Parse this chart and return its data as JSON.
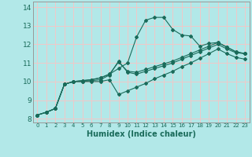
{
  "xlabel": "Humidex (Indice chaleur)",
  "ylabel": "",
  "bg_color": "#b2e8e8",
  "grid_color": "#f0c8c8",
  "line_color": "#1a6b5a",
  "xlim": [
    -0.5,
    23.5
  ],
  "ylim": [
    7.8,
    14.3
  ],
  "xticks": [
    0,
    1,
    2,
    3,
    4,
    5,
    6,
    7,
    8,
    9,
    10,
    11,
    12,
    13,
    14,
    15,
    16,
    17,
    18,
    19,
    20,
    21,
    22,
    23
  ],
  "yticks": [
    8,
    9,
    10,
    11,
    12,
    13,
    14
  ],
  "series": [
    [
      8.2,
      8.35,
      8.55,
      9.85,
      10.0,
      10.0,
      10.05,
      10.1,
      10.35,
      11.1,
      10.5,
      10.4,
      10.55,
      10.7,
      10.85,
      11.0,
      11.2,
      11.4,
      11.6,
      11.8,
      12.0,
      11.75,
      11.55,
      11.5
    ],
    [
      8.2,
      8.35,
      8.55,
      9.85,
      10.0,
      10.05,
      10.1,
      10.2,
      10.4,
      10.7,
      11.0,
      12.4,
      13.3,
      13.45,
      13.45,
      12.8,
      12.5,
      12.45,
      11.9,
      12.05,
      12.1,
      11.85,
      11.6,
      11.5
    ],
    [
      8.2,
      8.35,
      8.55,
      9.85,
      10.0,
      10.05,
      10.1,
      10.2,
      10.4,
      11.05,
      10.55,
      10.5,
      10.65,
      10.8,
      10.95,
      11.1,
      11.3,
      11.5,
      11.7,
      11.9,
      12.1,
      11.85,
      11.6,
      11.5
    ],
    [
      8.2,
      8.35,
      8.55,
      9.85,
      10.0,
      10.0,
      10.0,
      10.0,
      10.1,
      9.3,
      9.5,
      9.7,
      9.9,
      10.15,
      10.35,
      10.55,
      10.8,
      11.0,
      11.25,
      11.5,
      11.75,
      11.5,
      11.3,
      11.2
    ]
  ]
}
